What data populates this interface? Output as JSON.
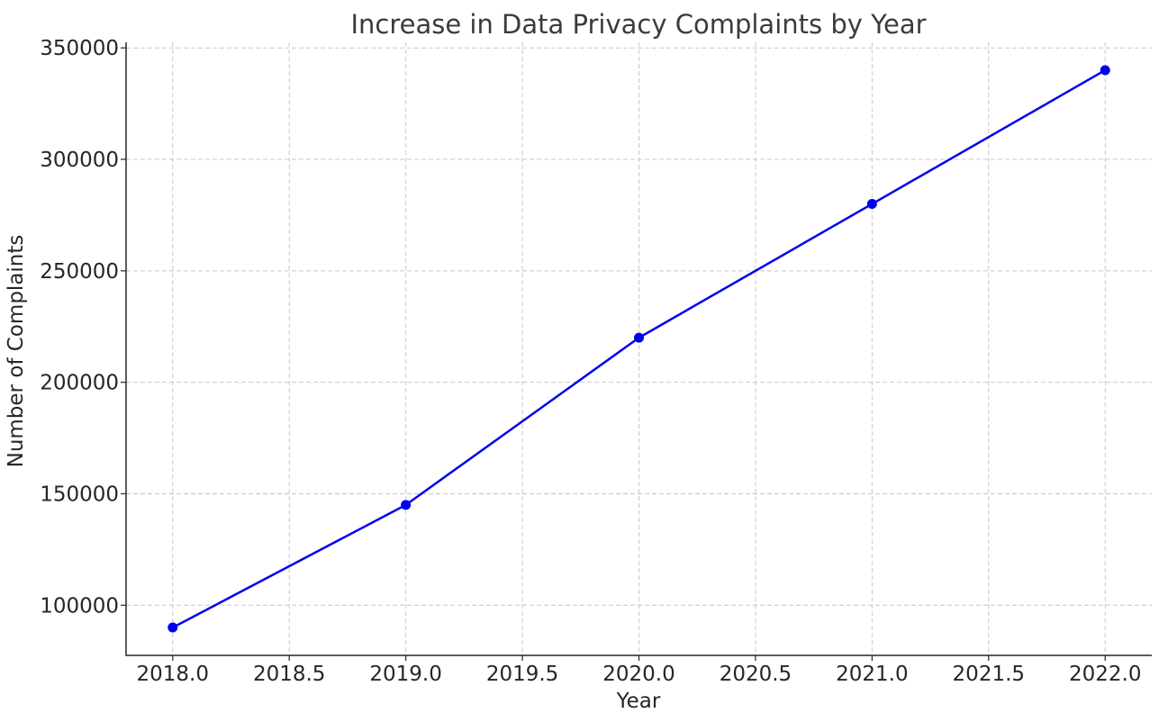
{
  "chart_data": {
    "type": "line",
    "title": "Increase in Data Privacy Complaints by Year",
    "xlabel": "Year",
    "ylabel": "Number of Complaints",
    "xlim": [
      2017.8,
      2022.2
    ],
    "ylim": [
      77500,
      352500
    ],
    "xticks": [
      2018.0,
      2018.5,
      2019.0,
      2019.5,
      2020.0,
      2020.5,
      2021.0,
      2021.5,
      2022.0
    ],
    "xtick_labels": [
      "2018.0",
      "2018.5",
      "2019.0",
      "2019.5",
      "2020.0",
      "2020.5",
      "2021.0",
      "2021.5",
      "2022.0"
    ],
    "yticks": [
      100000,
      150000,
      200000,
      250000,
      300000,
      350000
    ],
    "ytick_labels": [
      "100000",
      "150000",
      "200000",
      "250000",
      "300000",
      "350000"
    ],
    "grid": true,
    "series": [
      {
        "x": [
          2018,
          2019,
          2020,
          2021,
          2022
        ],
        "y": [
          90000,
          145000,
          220000,
          280000,
          340000
        ],
        "color": "#0000ee",
        "marker": "circle"
      }
    ]
  }
}
